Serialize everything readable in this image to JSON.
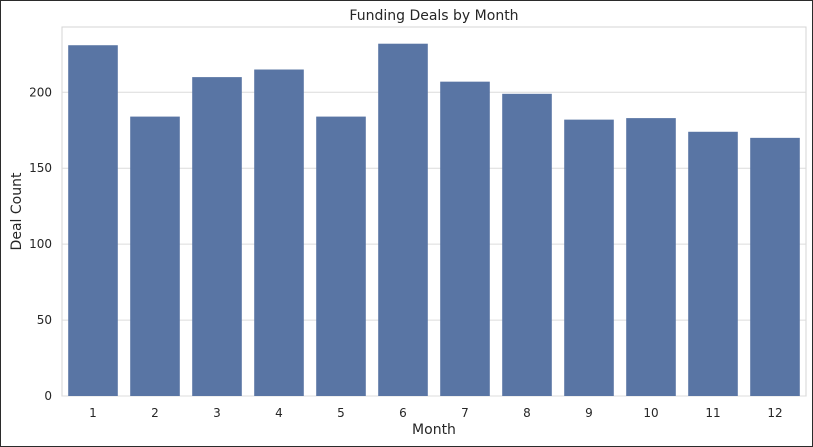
{
  "chart_data": {
    "type": "bar",
    "title": "Funding Deals by Month",
    "xlabel": "Month",
    "ylabel": "Deal Count",
    "categories": [
      "1",
      "2",
      "3",
      "4",
      "5",
      "6",
      "7",
      "8",
      "9",
      "10",
      "11",
      "12"
    ],
    "values": [
      231,
      184,
      210,
      215,
      184,
      232,
      207,
      199,
      182,
      183,
      174,
      170
    ],
    "ylim": [
      0,
      243
    ],
    "yticks": [
      0,
      50,
      100,
      150,
      200
    ],
    "bar_color": "#5975a4",
    "grid": true,
    "legend": "none"
  }
}
